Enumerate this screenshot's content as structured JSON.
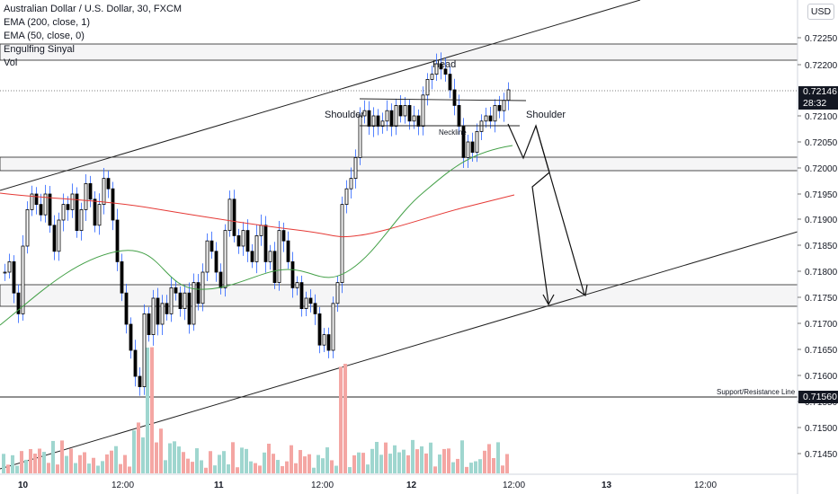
{
  "legend": {
    "title": "Australian Dollar / U.S. Dollar, 30, FXCM",
    "indicators": [
      "EMA (200, close, 1)",
      "EMA (50, close, 0)",
      "Engulfing Sinyal",
      "Vol"
    ]
  },
  "currency": "USD",
  "price_axis": {
    "ticks": [
      "0.72250",
      "0.72200",
      "0.72100",
      "0.72050",
      "0.72000",
      "0.71950",
      "0.71900",
      "0.71850",
      "0.71800",
      "0.71750",
      "0.71700",
      "0.71650",
      "0.71600",
      "0.71550",
      "0.71500",
      "0.71450"
    ],
    "current_price": "0.72146",
    "countdown": "28:32",
    "support_price": "0.71560"
  },
  "time_axis": {
    "labels": [
      "10",
      "12:00",
      "11",
      "12:00",
      "12",
      "12:00",
      "13",
      "12:00"
    ]
  },
  "annotations": {
    "head": "Head",
    "shoulder_left": "Shoulder",
    "shoulder_right": "Shoulder",
    "neckline": "Neckline",
    "support_line": "Support/Resistance Line"
  },
  "colors": {
    "up": "#26a69a",
    "down": "#ef5350",
    "candle": "#000000",
    "wick": "#2962ff",
    "ema200": "#e53935",
    "ema50": "#43a047",
    "vol_up": "#9fd6cf",
    "vol_down": "#f4a6a3"
  }
}
